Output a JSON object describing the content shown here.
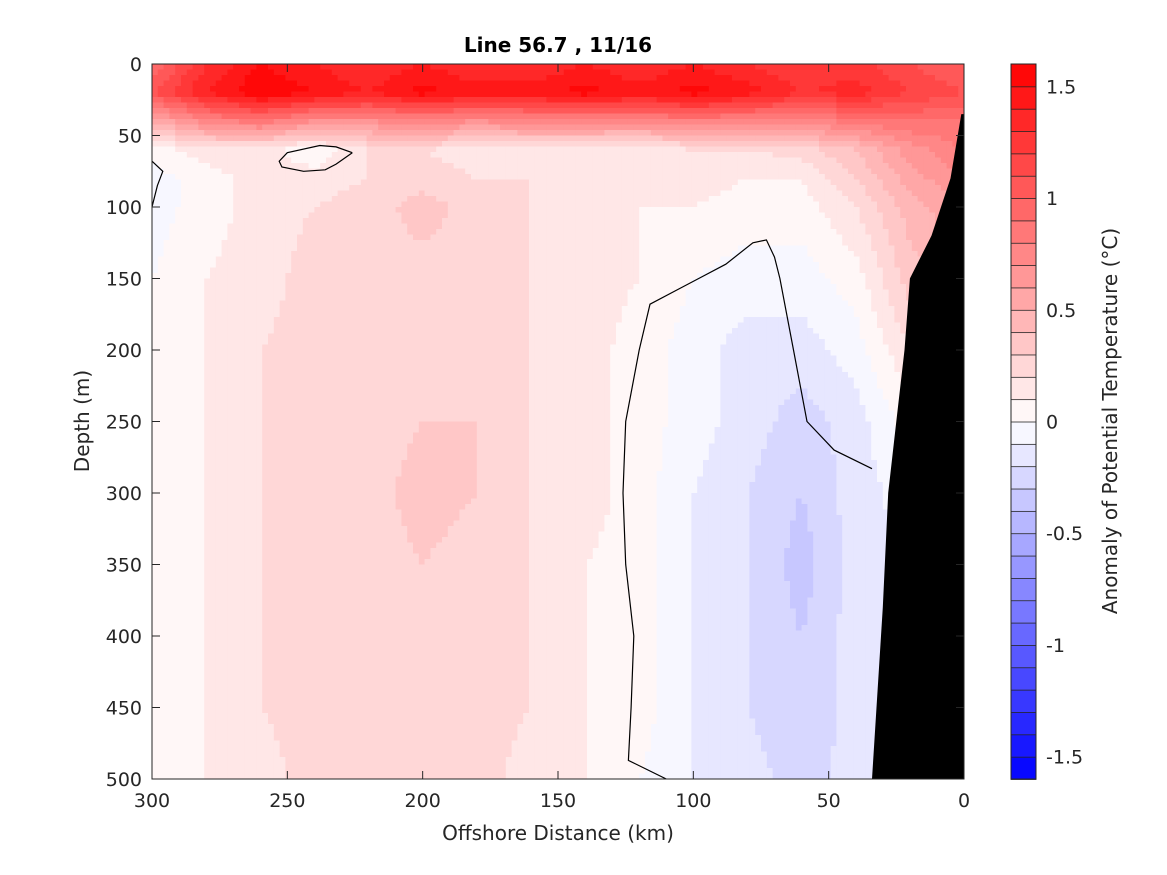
{
  "chart_data": {
    "type": "heatmap",
    "subtype": "filled-contour section",
    "title": "Line 56.7 , 11/16",
    "xlabel": "Offshore Distance (km)",
    "ylabel": "Depth (m)",
    "colorbar_label": "Anomaly of Potential Temperature (°C)",
    "xlim": [
      300,
      0
    ],
    "ylim": [
      500,
      0
    ],
    "x_reversed": true,
    "y_reversed": true,
    "x_ticks": [
      "300",
      "250",
      "200",
      "150",
      "100",
      "50",
      "0"
    ],
    "y_ticks": [
      "0",
      "50",
      "100",
      "150",
      "200",
      "250",
      "300",
      "350",
      "400",
      "450",
      "500"
    ],
    "colorbar_ticks": [
      "1.5",
      "1",
      "0.5",
      "0",
      "-0.5",
      "-1",
      "-1.5"
    ],
    "color_range": [
      -1.6,
      1.6
    ],
    "color_levels": 32,
    "colormap": {
      "low": "#0000ff",
      "zero": "#ffffff",
      "high": "#ff0000"
    },
    "bathymetry_color": "#000000",
    "zero_contour_color": "#000000",
    "depths_m": [
      0,
      20,
      40,
      60,
      80,
      100,
      150,
      200,
      250,
      300,
      350,
      400,
      450,
      500
    ],
    "distances_km": [
      300,
      280,
      260,
      240,
      220,
      200,
      180,
      160,
      140,
      120,
      100,
      80,
      60,
      40,
      20,
      0
    ],
    "anomaly_grid": [
      [
        0.9,
        1.3,
        1.5,
        1.4,
        1.3,
        1.4,
        1.3,
        1.3,
        1.4,
        1.3,
        1.4,
        1.3,
        1.2,
        1.25,
        1.1,
        1.0
      ],
      [
        1.1,
        1.4,
        1.6,
        1.5,
        1.4,
        1.55,
        1.45,
        1.45,
        1.55,
        1.45,
        1.55,
        1.45,
        1.3,
        1.35,
        1.2,
        1.1
      ],
      [
        0.5,
        0.75,
        0.85,
        0.7,
        0.7,
        0.75,
        0.7,
        0.75,
        0.75,
        0.75,
        0.8,
        0.75,
        0.75,
        0.85,
        0.9,
        0.9
      ],
      [
        0.05,
        0.15,
        0.15,
        0.02,
        0.2,
        0.2,
        0.15,
        0.15,
        0.15,
        0.1,
        0.2,
        0.2,
        0.25,
        0.4,
        0.65,
        0.8
      ],
      [
        -0.05,
        0.05,
        0.15,
        0.15,
        0.2,
        0.25,
        0.2,
        0.2,
        0.15,
        0.1,
        0.15,
        0.1,
        0.1,
        0.3,
        0.55,
        0.7
      ],
      [
        -0.05,
        0.05,
        0.15,
        0.2,
        0.25,
        0.35,
        0.25,
        0.2,
        0.15,
        0.1,
        0.1,
        0.05,
        0.05,
        0.2,
        0.45,
        0.6
      ],
      [
        0.0,
        0.1,
        0.15,
        0.25,
        0.25,
        0.25,
        0.25,
        0.2,
        0.15,
        0.1,
        0.0,
        -0.05,
        -0.05,
        0.05,
        0.35,
        0.45
      ],
      [
        0.05,
        0.1,
        0.2,
        0.25,
        0.25,
        0.25,
        0.25,
        0.2,
        0.15,
        0.05,
        -0.05,
        -0.15,
        -0.15,
        -0.05,
        0.2,
        0.35
      ],
      [
        0.05,
        0.1,
        0.2,
        0.25,
        0.25,
        0.3,
        0.3,
        0.2,
        0.15,
        0.05,
        -0.05,
        -0.15,
        -0.25,
        -0.15,
        0.05,
        0.2
      ],
      [
        0.05,
        0.1,
        0.2,
        0.25,
        0.25,
        0.35,
        0.3,
        0.2,
        0.15,
        0.05,
        -0.1,
        -0.2,
        -0.3,
        -0.15,
        -0.05,
        0.05
      ],
      [
        0.05,
        0.1,
        0.2,
        0.25,
        0.25,
        0.3,
        0.25,
        0.2,
        0.1,
        0.05,
        -0.1,
        -0.2,
        -0.35,
        -0.15,
        -0.1,
        0.0
      ],
      [
        0.05,
        0.1,
        0.2,
        0.25,
        0.25,
        0.25,
        0.25,
        0.2,
        0.1,
        0.05,
        -0.1,
        -0.2,
        -0.3,
        -0.15,
        -0.1,
        0.0
      ],
      [
        0.05,
        0.1,
        0.2,
        0.25,
        0.25,
        0.25,
        0.25,
        0.2,
        0.1,
        0.05,
        -0.1,
        -0.2,
        -0.3,
        -0.15,
        -0.1,
        0.0
      ],
      [
        0.05,
        0.1,
        0.15,
        0.25,
        0.25,
        0.25,
        0.25,
        0.15,
        0.1,
        0.0,
        -0.1,
        -0.15,
        -0.25,
        -0.15,
        -0.1,
        0.0
      ]
    ],
    "bathymetry_outline": [
      [
        34,
        500
      ],
      [
        30,
        380
      ],
      [
        28,
        300
      ],
      [
        25,
        250
      ],
      [
        22,
        200
      ],
      [
        20,
        150
      ],
      [
        12,
        120
      ],
      [
        5,
        80
      ],
      [
        1,
        35
      ],
      [
        0,
        35
      ]
    ],
    "zero_contour": [
      [
        300,
        68
      ],
      [
        296,
        75
      ],
      [
        298,
        85
      ],
      [
        300,
        100
      ],
      [
        226,
        62
      ],
      [
        232,
        58
      ],
      [
        238,
        57
      ],
      [
        250,
        62
      ],
      [
        253,
        68
      ],
      [
        252,
        72
      ],
      [
        244,
        75
      ],
      [
        236,
        74
      ],
      [
        232,
        70
      ],
      [
        226,
        62
      ],
      [
        110,
        500
      ],
      [
        124,
        487
      ],
      [
        123,
        450
      ],
      [
        122,
        400
      ],
      [
        125,
        350
      ],
      [
        126,
        300
      ],
      [
        125,
        250
      ],
      [
        120,
        200
      ],
      [
        116,
        168
      ],
      [
        106,
        158
      ],
      [
        98,
        150
      ],
      [
        88,
        140
      ],
      [
        78,
        125
      ],
      [
        73,
        123
      ],
      [
        70,
        135
      ],
      [
        68,
        150
      ],
      [
        63,
        200
      ],
      [
        58,
        250
      ],
      [
        48,
        270
      ],
      [
        34,
        283
      ]
    ]
  }
}
